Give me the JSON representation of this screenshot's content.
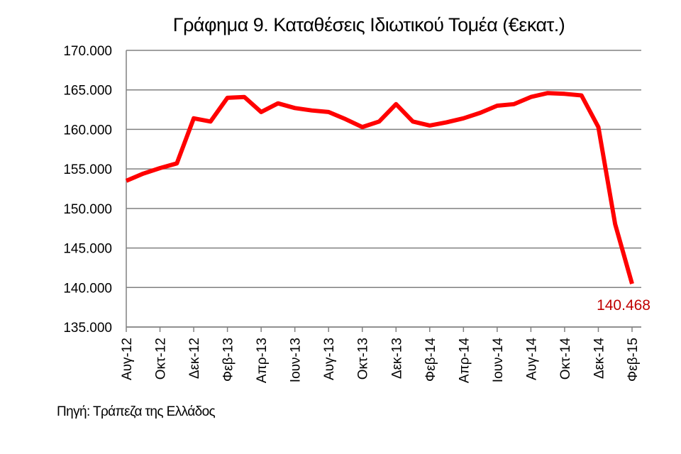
{
  "chart_data": {
    "type": "line",
    "title": "Γράφημα 9. Καταθέσεις Ιδιωτικού Τομέα (€εκατ.)",
    "xlabel": "",
    "ylabel": "",
    "ylim": [
      135000,
      170000
    ],
    "y_ticks": [
      "170.000",
      "165.000",
      "160.000",
      "155.000",
      "150.000",
      "145.000",
      "140.000",
      "135.000"
    ],
    "x_tick_labels": [
      "Αυγ-12",
      "Οκτ-12",
      "Δεκ-12",
      "Φεβ-13",
      "Απρ-13",
      "Ιουν-13",
      "Αυγ-13",
      "Οκτ-13",
      "Δεκ-13",
      "Φεβ-14",
      "Απρ-14",
      "Ιουν-14",
      "Αυγ-14",
      "Οκτ-14",
      "Δεκ-14",
      "Φεβ-15"
    ],
    "categories": [
      "Αυγ-12",
      "Σεπ-12",
      "Οκτ-12",
      "Νοε-12",
      "Δεκ-12",
      "Ιαν-13",
      "Φεβ-13",
      "Μαρ-13",
      "Απρ-13",
      "Μαϊ-13",
      "Ιουν-13",
      "Ιουλ-13",
      "Αυγ-13",
      "Σεπ-13",
      "Οκτ-13",
      "Νοε-13",
      "Δεκ-13",
      "Ιαν-14",
      "Φεβ-14",
      "Μαρ-14",
      "Απρ-14",
      "Μαϊ-14",
      "Ιουν-14",
      "Ιουλ-14",
      "Αυγ-14",
      "Σεπ-14",
      "Οκτ-14",
      "Νοε-14",
      "Δεκ-14",
      "Ιαν-15",
      "Φεβ-15"
    ],
    "series": [
      {
        "values": [
          153500,
          154400,
          155100,
          155700,
          161400,
          161000,
          164000,
          164100,
          162200,
          163300,
          162700,
          162400,
          162200,
          161300,
          160300,
          161000,
          163200,
          161000,
          160500,
          160900,
          161400,
          162100,
          163000,
          163200,
          164100,
          164600,
          164500,
          164300,
          160300,
          148000,
          140468
        ],
        "color": "#ff0000"
      }
    ],
    "end_label": "140.468",
    "end_label_color": "#c00000",
    "grid": true,
    "legend": "none"
  },
  "source_note": "Πηγή: Τράπεζα της Ελλάδος"
}
